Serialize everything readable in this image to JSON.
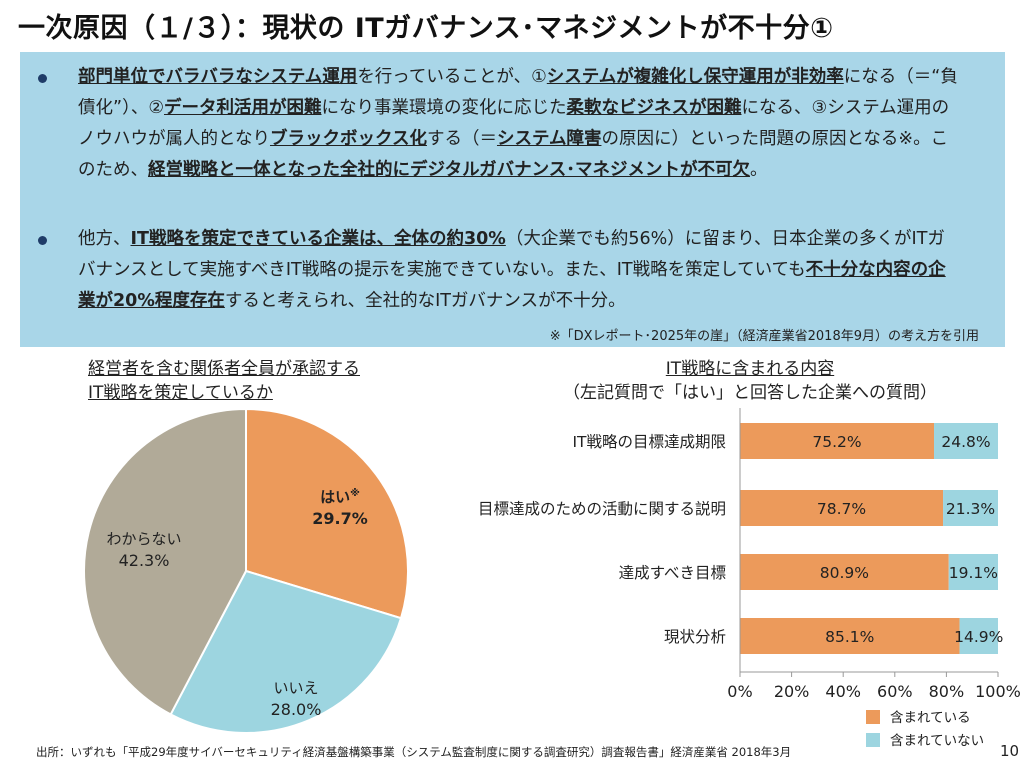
{
  "title": "一次原因（１/３）：現状の ITガバナンス･マネジメントが不十分①",
  "summary": {
    "bullet1": [
      {
        "t": "部門単位でバラバラなシステム運用",
        "em": true
      },
      {
        "t": "を行っていることが、①",
        "em": false
      },
      {
        "t": "システムが複雑化し保守運用が非効率",
        "em": true
      },
      {
        "t": "になる（＝“負債化”）、②",
        "em": false
      },
      {
        "t": "データ利活用が困難",
        "em": true
      },
      {
        "t": "になり事業環境の変化に応じた",
        "em": false
      },
      {
        "t": "柔軟なビジネスが困難",
        "em": true
      },
      {
        "t": "になる、③システム運用のノウハウが属人的となり",
        "em": false
      },
      {
        "t": "ブラックボックス化",
        "em": true
      },
      {
        "t": "する（＝",
        "em": false
      },
      {
        "t": "システム障害",
        "em": true
      },
      {
        "t": "の原因に）といった問題の原因となる※。このため、",
        "em": false
      },
      {
        "t": "経営戦略と一体となった全社的にデジタルガバナンス･マネジメントが不可欠",
        "em": true
      },
      {
        "t": "。",
        "em": false
      }
    ],
    "bullet2": [
      {
        "t": "他方、",
        "em": false
      },
      {
        "t": "IT戦略を策定できている企業は、全体の約30%",
        "em": true
      },
      {
        "t": "（大企業でも約56%）に留まり、日本企業の多くがITガバナンスとして実施すべきIT戦略の提示を実施できていない。また、IT戦略を策定していても",
        "em": false
      },
      {
        "t": "不十分な内容の企業が20%程度存在",
        "em": true
      },
      {
        "t": "すると考えられ、全社的なITガバナンスが不十分。",
        "em": false
      }
    ],
    "note": "※「DXレポート･2025年の崖」（経済産業省2018年9月）の考え方を引用"
  },
  "pie_title": [
    "経営者を含む関係者全員が承認する",
    "IT戦略を策定しているか"
  ],
  "bar_title": [
    "IT戦略に含まれる内容",
    "（左記質問で「はい」と回答した企業への質問）"
  ],
  "colors": {
    "orange": "#ec9a5b",
    "blue": "#9dd5e0",
    "gray": "#b1aa98"
  },
  "chart_data": [
    {
      "type": "pie",
      "title": "経営者を含む関係者全員が承認するIT戦略を策定しているか",
      "slices": [
        {
          "label": "はい",
          "mark": "※",
          "value": 29.7,
          "value_label": "29.7%",
          "color": "#ec9a5b",
          "bold": true
        },
        {
          "label": "いいえ",
          "mark": "",
          "value": 28.0,
          "value_label": "28.0%",
          "color": "#9dd5e0",
          "bold": false
        },
        {
          "label": "わからない",
          "mark": "",
          "value": 42.3,
          "value_label": "42.3%",
          "color": "#b1aa98",
          "bold": false
        }
      ]
    },
    {
      "type": "bar",
      "orientation": "horizontal",
      "stacked": true,
      "title": "IT戦略に含まれる内容",
      "categories": [
        "IT戦略の目標達成期限",
        "目標達成のための活動に関する説明",
        "達成すべき目標",
        "現状分析"
      ],
      "series": [
        {
          "name": "含まれている",
          "values": [
            75.2,
            78.7,
            80.9,
            85.1
          ],
          "labels": [
            "75.2%",
            "78.7%",
            "80.9%",
            "85.1%"
          ],
          "color": "#ec9a5b"
        },
        {
          "name": "含まれていない",
          "values": [
            24.8,
            21.3,
            19.1,
            14.9
          ],
          "labels": [
            "24.8%",
            "21.3%",
            "19.1%",
            "14.9%"
          ],
          "color": "#9dd5e0"
        }
      ],
      "xlim": [
        0,
        100
      ],
      "xticks": [
        "0%",
        "20%",
        "40%",
        "60%",
        "80%",
        "100%"
      ],
      "legend": "bottom-right"
    }
  ],
  "source": "出所：いずれも「平成29年度サイバーセキュリティ経済基盤構築事業（システム監査制度に関する調査研究）調査報告書」経済産業省 2018年3月",
  "page_number": "10"
}
